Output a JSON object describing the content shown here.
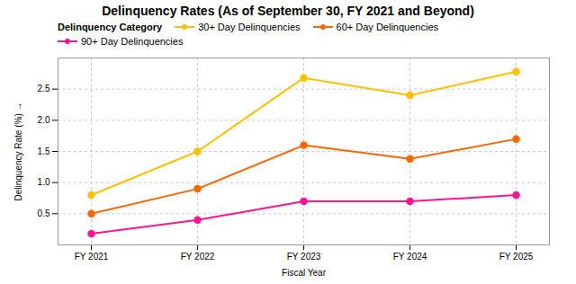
{
  "chart_data": {
    "type": "line",
    "title": "Delinquency Rates (As of September 30, FY 2021 and Beyond)",
    "xlabel": "Fiscal Year",
    "ylabel": "Delinquency Rate (%)",
    "legend_title": "Delinquency Category",
    "categories": [
      "FY 2021",
      "FY 2022",
      "FY 2023",
      "FY 2024",
      "FY 2025"
    ],
    "series": [
      {
        "name": "30+ Day Delinquencies",
        "color": "#FFC000",
        "marker": "o",
        "values": [
          0.8,
          1.5,
          2.68,
          2.4,
          2.78
        ]
      },
      {
        "name": "60+ Day Delinquencies",
        "color": "#FF6600",
        "marker": "o",
        "values": [
          0.5,
          0.9,
          1.6,
          1.38,
          1.7
        ]
      },
      {
        "name": "90+ Day Delinquencies",
        "color": "#FF1493",
        "marker": "o",
        "values": [
          0.18,
          0.4,
          0.7,
          0.7,
          0.8
        ]
      }
    ],
    "ylim": [
      0,
      3.0
    ],
    "yticks": [
      0.5,
      {
        "value": 1.0,
        "label": "1.0"
      },
      1.5,
      {
        "value": 2.0,
        "label": "2.0"
      },
      2.5
    ],
    "grid": true,
    "legend": "upper left"
  }
}
